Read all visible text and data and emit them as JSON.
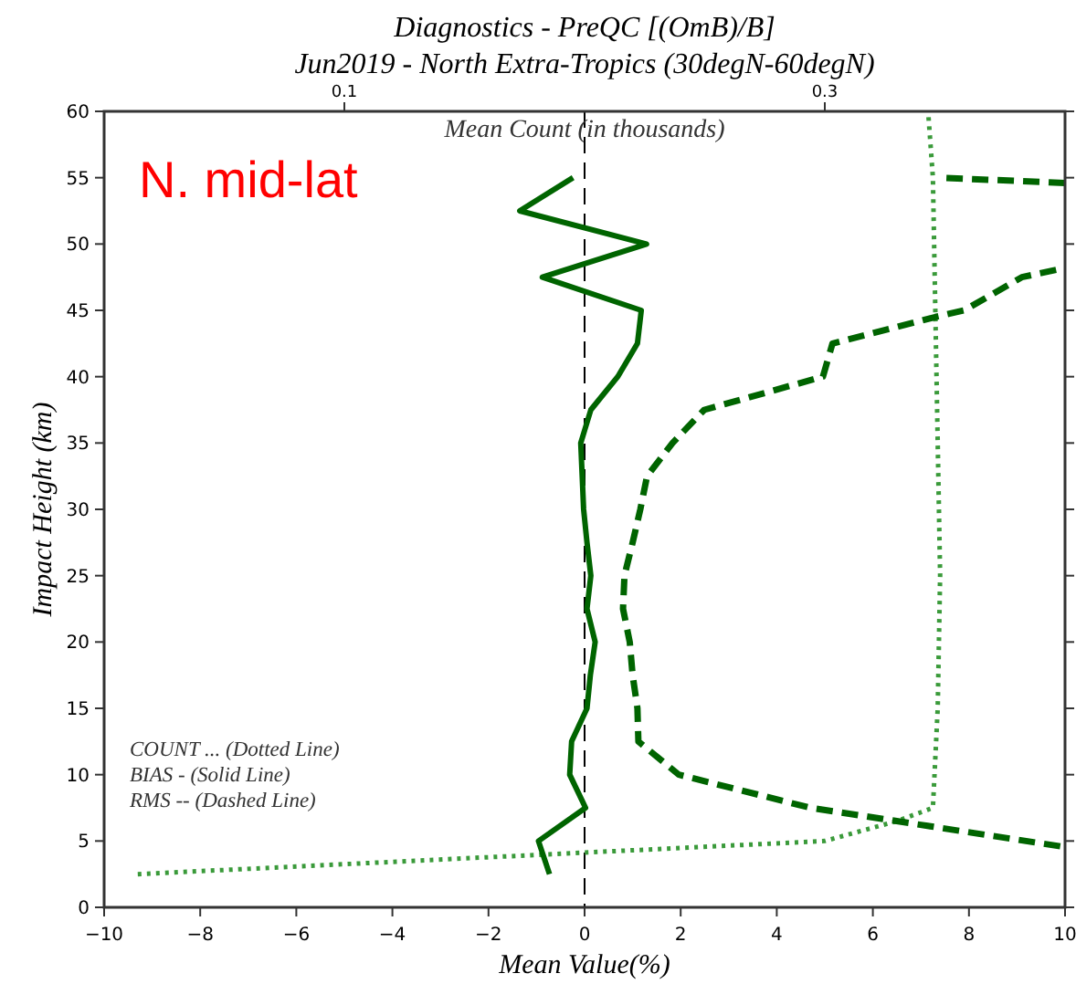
{
  "chart_data": {
    "type": "line",
    "title": "Diagnostics - PreQC [(OmB)/B]",
    "subtitle": "Jun2019 - North Extra-Tropics (30degN-60degN)",
    "xlabel": "Mean Value(%)",
    "ylabel": "Impact Height (km)",
    "x2label": "Mean Count (in thousands)",
    "xlim": [
      -10,
      10
    ],
    "xticks": [
      -10,
      -8,
      -6,
      -4,
      -2,
      0,
      2,
      4,
      6,
      8,
      10
    ],
    "ylim": [
      0,
      60
    ],
    "yticks": [
      0,
      5,
      10,
      15,
      20,
      25,
      30,
      35,
      40,
      45,
      50,
      55,
      60
    ],
    "x2lim": [
      0,
      0.4
    ],
    "x2ticks": [
      0.1,
      0.3
    ],
    "annotations": [
      "N. mid-lat",
      "COUNT ... (Dotted Line)",
      "BIAS - (Solid Line)",
      "RMS -- (Dashed Line)"
    ],
    "ref_lines": [
      {
        "axis": "x",
        "value": 0,
        "color": "#000000",
        "line_style": "dashed"
      }
    ],
    "series": [
      {
        "color": "#3a9a3a",
        "line_style": "dotted",
        "axis": "x2",
        "x": [
          0.014,
          0.3,
          0.33,
          0.345,
          0.347,
          0.348,
          0.347,
          0.346,
          0.345,
          0.343
        ],
        "values": [
          2.5,
          5,
          6.5,
          7.5,
          15,
          25,
          35,
          45,
          55,
          60
        ]
      },
      {
        "color": "#006400",
        "line_style": "solid",
        "x": [
          -0.73,
          -0.96,
          0.02,
          -0.31,
          -0.27,
          0.05,
          0.12,
          0.22,
          0.05,
          0.13,
          0.05,
          -0.02,
          -0.05,
          -0.08,
          0.13,
          0.69,
          1.1,
          1.18,
          -0.88,
          1.29,
          -1.35,
          -0.24
        ],
        "values": [
          2.5,
          5,
          7.5,
          10,
          12.5,
          15,
          17.5,
          20,
          22.5,
          25,
          27.5,
          30,
          32.5,
          35,
          37.5,
          40,
          42.5,
          45,
          47.5,
          50,
          52.5,
          55
        ]
      },
      {
        "color": "#006400",
        "line_style": "dashed",
        "x": [
          9.9,
          4.7,
          1.96,
          1.12,
          1.1,
          1.0,
          0.94,
          0.8,
          0.83,
          1.0,
          1.16,
          1.3,
          1.83,
          2.49,
          4.96,
          5.16,
          7.3,
          7.9,
          9.1,
          10,
          null,
          10,
          7.4
        ],
        "values": [
          4.6,
          7.5,
          10,
          12.5,
          15,
          17.5,
          20,
          22.5,
          25,
          27.5,
          30,
          32.5,
          35,
          37.5,
          40,
          42.5,
          44.5,
          45,
          47.5,
          48.2,
          null,
          54.6,
          55
        ]
      }
    ]
  }
}
